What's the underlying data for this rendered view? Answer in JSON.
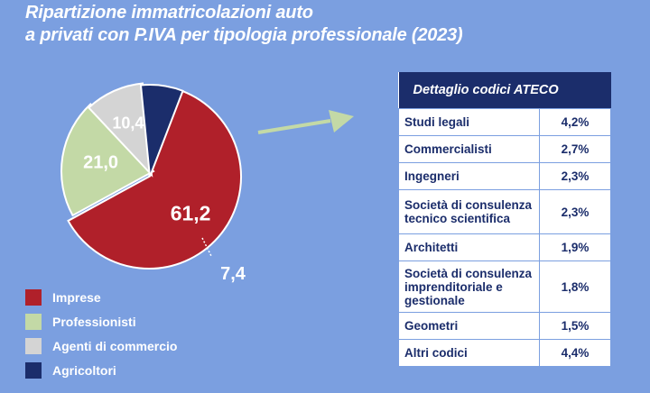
{
  "title_line1": "Ripartizione immatricolazioni auto",
  "title_line2": "a privati con P.IVA per tipologia professionale (2023)",
  "colors": {
    "background": "#7b9fe0",
    "imprese": "#b0202a",
    "professionisti": "#c3d9a6",
    "agenti": "#d4d4d4",
    "agricoltori": "#1b2d6b",
    "arrow": "#c3d9a6",
    "table_header": "#1b2d6b"
  },
  "chart_data": {
    "type": "pie",
    "categories": [
      "Imprese",
      "Professionisti",
      "Agenti di commercio",
      "Agricoltori"
    ],
    "values": [
      61.2,
      21.0,
      10.4,
      7.4
    ],
    "value_labels": [
      "61,2",
      "21,0",
      "10,4",
      "7,4"
    ],
    "legend_position": "bottom-left"
  },
  "table": {
    "header": "Dettaglio codici ATECO",
    "rows": [
      {
        "label": "Studi legali",
        "value": "4,2%"
      },
      {
        "label": "Commercialisti",
        "value": "2,7%"
      },
      {
        "label": "Ingegneri",
        "value": "2,3%"
      },
      {
        "label": "Società di consulenza tecnico scientifica",
        "value": "2,3%"
      },
      {
        "label": "Architetti",
        "value": "1,9%"
      },
      {
        "label": "Società di consulenza imprenditoriale e gestionale",
        "value": "1,8%"
      },
      {
        "label": "Geometri",
        "value": "1,5%"
      },
      {
        "label": "Altri codici",
        "value": "4,4%"
      }
    ]
  }
}
